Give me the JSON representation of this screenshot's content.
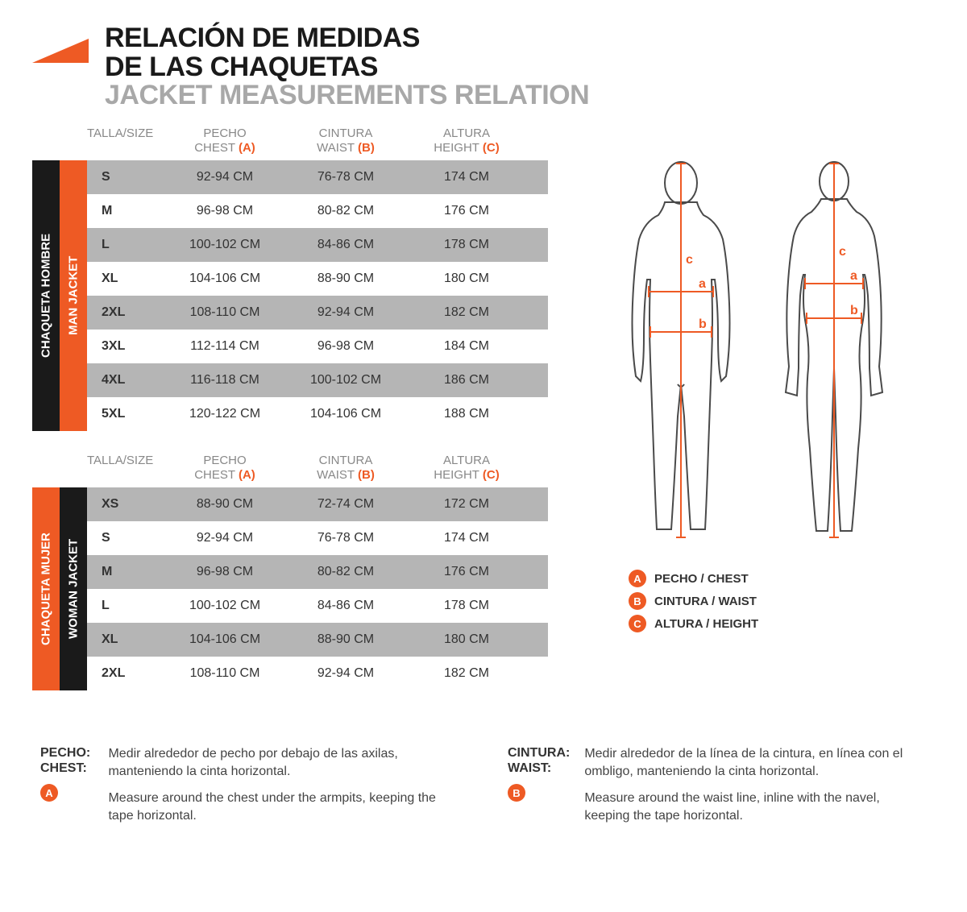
{
  "colors": {
    "accent": "#ee5a24",
    "black": "#1a1a1a",
    "grey_text": "#a8a8a8",
    "row_alt": "#b5b5b5",
    "body_line": "#4a4a4a"
  },
  "header": {
    "title_es_line1": "RELACIÓN DE MEDIDAS",
    "title_es_line2": "DE LAS CHAQUETAS",
    "title_en": "JACKET MEASUREMENTS RELATION"
  },
  "column_headers": {
    "size": "TALLA/SIZE",
    "chest_es": "PECHO",
    "chest_en": "CHEST",
    "chest_letter": "(A)",
    "waist_es": "CINTURA",
    "waist_en": "WAIST",
    "waist_letter": "(B)",
    "height_es": "ALTURA",
    "height_en": "HEIGHT",
    "height_letter": "(C)"
  },
  "man_table": {
    "label_outer": "CHAQUETA HOMBRE",
    "label_inner": "MAN JACKET",
    "outer_bg": "#1a1a1a",
    "inner_bg": "#ee5a24",
    "rows": [
      {
        "size": "S",
        "chest": "92-94 CM",
        "waist": "76-78 CM",
        "height": "174 CM"
      },
      {
        "size": "M",
        "chest": "96-98 CM",
        "waist": "80-82 CM",
        "height": "176 CM"
      },
      {
        "size": "L",
        "chest": "100-102 CM",
        "waist": "84-86 CM",
        "height": "178 CM"
      },
      {
        "size": "XL",
        "chest": "104-106 CM",
        "waist": "88-90 CM",
        "height": "180 CM"
      },
      {
        "size": "2XL",
        "chest": "108-110 CM",
        "waist": "92-94 CM",
        "height": "182 CM"
      },
      {
        "size": "3XL",
        "chest": "112-114 CM",
        "waist": "96-98 CM",
        "height": "184 CM"
      },
      {
        "size": "4XL",
        "chest": "116-118 CM",
        "waist": "100-102 CM",
        "height": "186 CM"
      },
      {
        "size": "5XL",
        "chest": "120-122 CM",
        "waist": "104-106 CM",
        "height": "188 CM"
      }
    ]
  },
  "woman_table": {
    "label_outer": "CHAQUETA MUJER",
    "label_inner": "WOMAN JACKET",
    "outer_bg": "#ee5a24",
    "inner_bg": "#1a1a1a",
    "rows": [
      {
        "size": "XS",
        "chest": "88-90 CM",
        "waist": "72-74 CM",
        "height": "172 CM"
      },
      {
        "size": "S",
        "chest": "92-94 CM",
        "waist": "76-78 CM",
        "height": "174 CM"
      },
      {
        "size": "M",
        "chest": "96-98 CM",
        "waist": "80-82 CM",
        "height": "176 CM"
      },
      {
        "size": "L",
        "chest": "100-102 CM",
        "waist": "84-86 CM",
        "height": "178 CM"
      },
      {
        "size": "XL",
        "chest": "104-106 CM",
        "waist": "88-90 CM",
        "height": "180 CM"
      },
      {
        "size": "2XL",
        "chest": "108-110 CM",
        "waist": "92-94 CM",
        "height": "182 CM"
      }
    ]
  },
  "legend": {
    "a": "PECHO / CHEST",
    "b": "CINTURA / WAIST",
    "c": "ALTURA / HEIGHT"
  },
  "instructions": {
    "chest": {
      "label_es": "PECHO:",
      "label_en": "CHEST:",
      "letter": "A",
      "text_es": "Medir alrededor de pecho por debajo de las axilas, manteniendo la cinta horizontal.",
      "text_en": "Measure around the chest under the armpits, keeping the tape horizontal."
    },
    "waist": {
      "label_es": "CINTURA:",
      "label_en": "WAIST:",
      "letter": "B",
      "text_es": "Medir alrededor de la línea de la cintura, en línea con el ombligo, manteniendo la cinta horizontal.",
      "text_en": "Measure around the waist line, inline with the navel, keeping the tape horizontal."
    }
  },
  "figure_labels": {
    "a": "a",
    "b": "b",
    "c": "c"
  }
}
